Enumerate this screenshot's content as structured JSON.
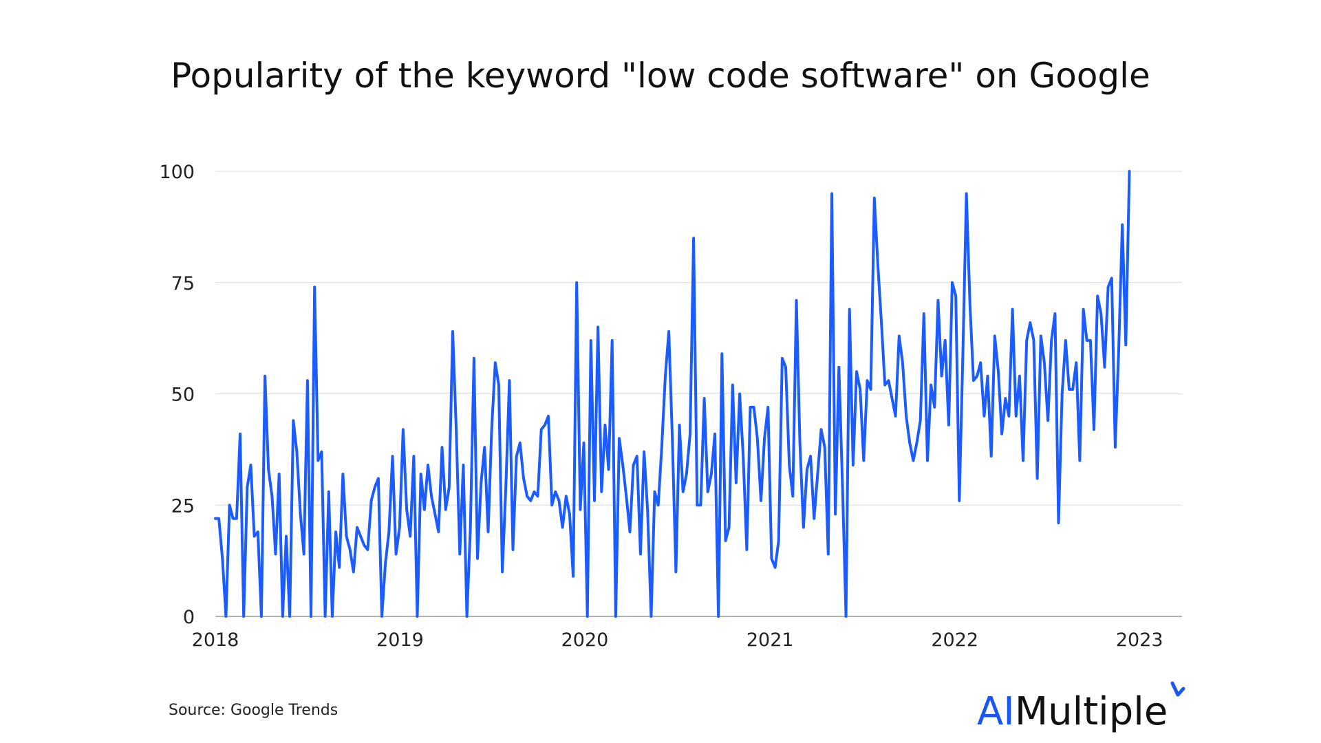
{
  "chart_data": {
    "type": "line",
    "title": "Popularity of the keyword \"low code software\" on Google",
    "xlabel": "",
    "ylabel": "",
    "ylim": [
      0,
      100
    ],
    "yticks": [
      "0",
      "25",
      "50",
      "75",
      "100"
    ],
    "xticks": [
      "2018",
      "2019",
      "2020",
      "2021",
      "2022",
      "2023"
    ],
    "xlim": [
      "2018-01-01",
      "2023-03-26"
    ],
    "grid": true,
    "legend": "none",
    "series": [
      {
        "color": "#1a5cff",
        "x_start": "2018-01-01",
        "x_step_days": 7,
        "values": [
          22,
          22,
          13,
          0,
          25,
          22,
          22,
          41,
          0,
          29,
          34,
          18,
          19,
          0,
          54,
          33,
          27,
          14,
          32,
          0,
          18,
          0,
          44,
          37,
          23,
          14,
          53,
          0,
          74,
          35,
          37,
          0,
          28,
          0,
          19,
          11,
          32,
          18,
          15,
          10,
          20,
          18,
          16,
          15,
          26,
          29,
          31,
          0,
          12,
          19,
          36,
          14,
          20,
          42,
          24,
          18,
          36,
          0,
          32,
          24,
          34,
          27,
          23,
          19,
          38,
          24,
          29,
          64,
          42,
          14,
          34,
          0,
          20,
          58,
          13,
          30,
          38,
          19,
          42,
          57,
          52,
          10,
          29,
          53,
          15,
          36,
          39,
          31,
          27,
          26,
          28,
          27,
          42,
          43,
          45,
          25,
          28,
          26,
          20,
          27,
          23,
          9,
          75,
          24,
          39,
          0,
          62,
          26,
          65,
          28,
          43,
          33,
          62,
          0,
          40,
          34,
          27,
          19,
          34,
          36,
          14,
          37,
          24,
          0,
          28,
          25,
          38,
          54,
          64,
          40,
          10,
          43,
          28,
          32,
          41,
          85,
          25,
          25,
          49,
          28,
          32,
          41,
          0,
          59,
          17,
          20,
          52,
          30,
          50,
          36,
          15,
          47,
          47,
          40,
          26,
          40,
          47,
          13,
          11,
          17,
          58,
          56,
          34,
          27,
          71,
          39,
          20,
          33,
          36,
          22,
          32,
          42,
          38,
          14,
          95,
          23,
          56,
          30,
          0,
          69,
          34,
          55,
          51,
          35,
          53,
          51,
          94,
          79,
          66,
          52,
          53,
          49,
          45,
          63,
          57,
          45,
          39,
          35,
          39,
          44,
          68,
          35,
          52,
          47,
          71,
          54,
          62,
          43,
          75,
          72,
          26,
          59,
          95,
          70,
          53,
          54,
          57,
          45,
          54,
          36,
          63,
          55,
          41,
          49,
          45,
          69,
          45,
          54,
          35,
          62,
          66,
          62,
          31,
          63,
          57,
          44,
          62,
          68,
          21,
          50,
          62,
          51,
          51,
          57,
          35,
          69,
          62,
          62,
          42,
          72,
          68,
          56,
          74,
          76,
          38,
          60,
          88,
          61,
          100
        ]
      }
    ]
  },
  "footer": {
    "source": "Source: Google Trends",
    "logo_ai": "AI",
    "logo_rest": "Multiple",
    "logo_accent_color": "#1a56f0"
  }
}
